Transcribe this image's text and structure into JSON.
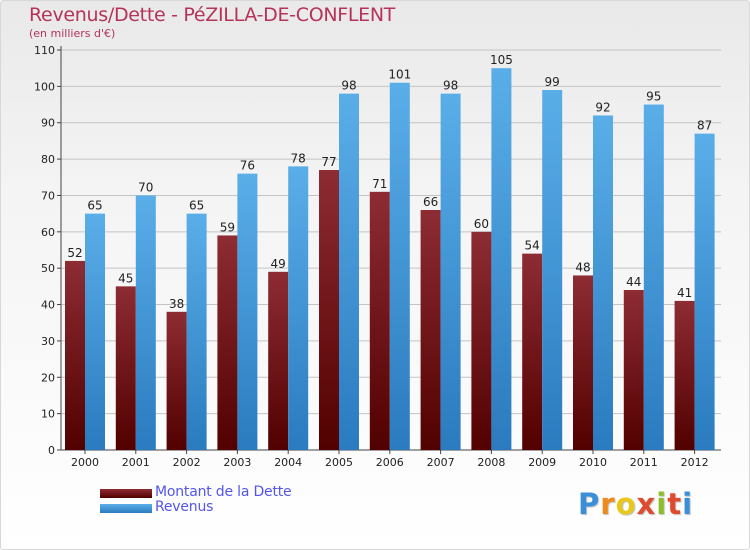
{
  "title": "Revenus/Dette - PéZILLA-DE-CONFLENT",
  "subtitle": "(en milliers d'€)",
  "colors": {
    "debt_light": "#8d2c33",
    "debt_dark": "#520000",
    "revenue_light": "#5aaee8",
    "revenue_dark": "#2a7bbf",
    "title": "#b5335a",
    "legend_text": "#5555ee"
  },
  "legend": {
    "debt_label": "Montant de la Dette",
    "revenue_label": "Revenus"
  },
  "logo": {
    "text": "Proxiti",
    "letter_colors": [
      "#3a8fd8",
      "#f08a1c",
      "#e8c81a",
      "#e04a2e",
      "#8bbf2a",
      "#e04a2e",
      "#3a8fd8"
    ]
  },
  "chart_data": {
    "type": "bar",
    "title": "Revenus/Dette - PéZILLA-DE-CONFLENT",
    "ylabel": "(en milliers d'€)",
    "xlabel": "",
    "ylim": [
      0,
      110
    ],
    "yticks": [
      0,
      10,
      20,
      30,
      40,
      50,
      60,
      70,
      80,
      90,
      100,
      110
    ],
    "grid": true,
    "legend_position": "bottom-left",
    "categories": [
      "2000",
      "2001",
      "2002",
      "2003",
      "2004",
      "2005",
      "2006",
      "2007",
      "2008",
      "2009",
      "2010",
      "2011",
      "2012"
    ],
    "series": [
      {
        "name": "Montant de la Dette",
        "values": [
          52,
          45,
          38,
          59,
          49,
          77,
          71,
          66,
          60,
          54,
          48,
          44,
          41
        ]
      },
      {
        "name": "Revenus",
        "values": [
          65,
          70,
          65,
          76,
          78,
          98,
          101,
          98,
          105,
          99,
          92,
          95,
          87
        ]
      }
    ]
  }
}
